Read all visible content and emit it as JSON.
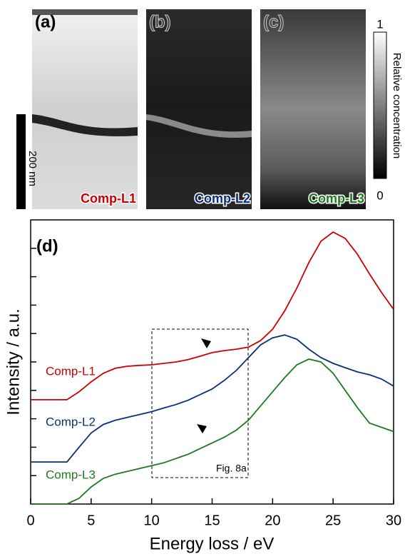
{
  "panels": [
    {
      "label": "(a)",
      "component": "Comp-L1"
    },
    {
      "label": "(b)",
      "component": "Comp-L2"
    },
    {
      "label": "(c)",
      "component": "Comp-L3"
    }
  ],
  "scale_bar": "200 nm",
  "colorbar": {
    "label": "Relative concentration",
    "ticks": [
      0,
      1
    ]
  },
  "chart_data": {
    "type": "line",
    "panel_label": "(d)",
    "annotation": "Fig. 8a",
    "x_label": "Energy loss / eV",
    "y_label": "Intensity / a.u.",
    "xlim": [
      0,
      30
    ],
    "xticks": [
      0,
      5,
      10,
      15,
      20,
      25,
      30
    ],
    "ylim": [
      0,
      10
    ],
    "yticks": [
      0,
      1,
      2,
      3,
      4,
      5,
      6,
      7,
      8,
      9
    ],
    "x": [
      0,
      1,
      2,
      3,
      4,
      5,
      6,
      7,
      8,
      9,
      10,
      11,
      12,
      13,
      14,
      15,
      16,
      17,
      18,
      19,
      20,
      21,
      22,
      23,
      24,
      25,
      26,
      27,
      28,
      29,
      30
    ],
    "series": [
      {
        "name": "Comp-L1",
        "color": "#cc0000",
        "values": [
          3.67,
          3.67,
          3.67,
          3.67,
          3.95,
          4.3,
          4.6,
          4.78,
          4.85,
          4.88,
          4.9,
          4.95,
          5.0,
          5.08,
          5.2,
          5.33,
          5.4,
          5.45,
          5.52,
          5.75,
          6.15,
          6.8,
          7.6,
          8.5,
          9.25,
          9.57,
          9.35,
          8.8,
          8.1,
          7.45,
          6.85
        ]
      },
      {
        "name": "Comp-L2",
        "color": "#0a2f7a",
        "values": [
          1.48,
          1.48,
          1.48,
          1.48,
          2.0,
          2.5,
          2.8,
          2.95,
          3.05,
          3.15,
          3.25,
          3.38,
          3.5,
          3.65,
          3.85,
          4.05,
          4.35,
          4.7,
          5.15,
          5.6,
          5.85,
          5.95,
          5.8,
          5.45,
          5.15,
          4.95,
          4.8,
          4.65,
          4.55,
          4.4,
          4.15
        ]
      },
      {
        "name": "Comp-L3",
        "color": "#1e7a1e",
        "values": [
          0,
          0,
          0,
          0,
          0.2,
          0.6,
          0.9,
          1.05,
          1.15,
          1.25,
          1.35,
          1.45,
          1.6,
          1.75,
          1.95,
          2.15,
          2.35,
          2.6,
          2.95,
          3.45,
          3.95,
          4.45,
          4.9,
          5.1,
          5.0,
          4.6,
          4.0,
          3.4,
          2.85,
          2.7,
          2.55
        ]
      }
    ]
  }
}
